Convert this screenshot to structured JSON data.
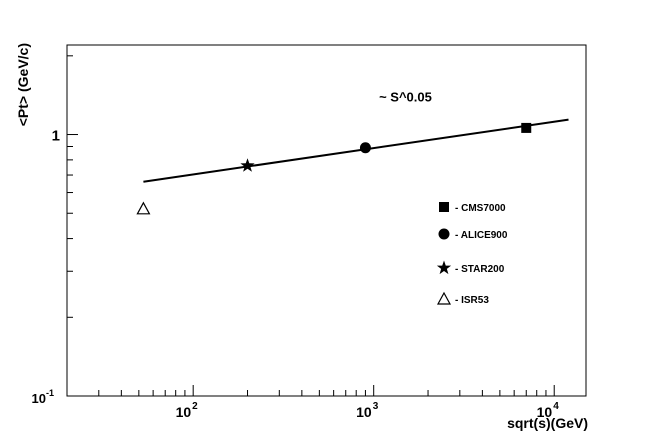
{
  "chart_data": {
    "type": "scatter",
    "x_scale": "log",
    "y_scale": "log",
    "xlim": [
      20,
      15000
    ],
    "ylim": [
      0.1,
      2.2
    ],
    "xlabel": "sqrt(s)(GeV)",
    "ylabel": "<Pt> (GeV/c)",
    "grid": false,
    "legend_position": "right-middle",
    "x_tick_labels": [
      {
        "value": 100,
        "base": "10",
        "exp": "2"
      },
      {
        "value": 1000,
        "base": "10",
        "exp": "3"
      },
      {
        "value": 10000,
        "base": "10",
        "exp": "4"
      }
    ],
    "y_tick_labels": [
      {
        "value": 0.1,
        "base": "10",
        "exp": "-1"
      },
      {
        "value": 1,
        "text": "1"
      }
    ],
    "series": [
      {
        "name": "- CMS7000",
        "marker": "square",
        "points": [
          {
            "x": 7000,
            "y": 1.06
          }
        ]
      },
      {
        "name": "- ALICE900",
        "marker": "circle",
        "points": [
          {
            "x": 900,
            "y": 0.89
          }
        ]
      },
      {
        "name": "- STAR200",
        "marker": "star",
        "points": [
          {
            "x": 200,
            "y": 0.76
          }
        ]
      },
      {
        "name": "- ISR53",
        "marker": "open-triangle",
        "points": [
          {
            "x": 53,
            "y": 0.52
          }
        ]
      }
    ],
    "fit": {
      "type": "power-law",
      "x_range": [
        53,
        12000
      ],
      "y_range": [
        0.66,
        1.14
      ]
    },
    "annotations": [
      {
        "text": "~ S^0.05",
        "x": 1500,
        "y": 1.34
      }
    ],
    "colors": {
      "markers": "#000000",
      "axes": "#000000",
      "background": "#ffffff"
    }
  }
}
